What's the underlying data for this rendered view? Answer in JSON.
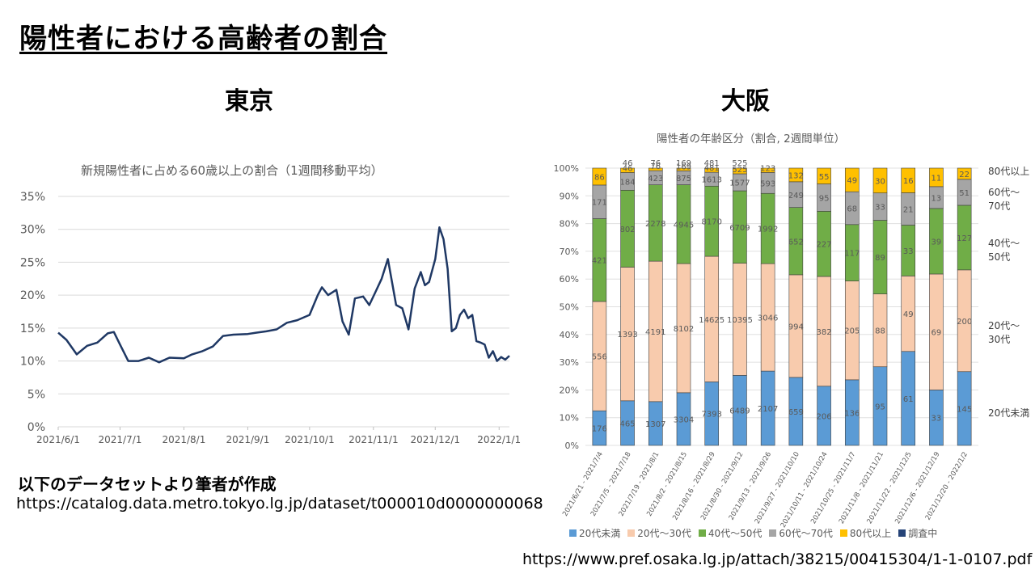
{
  "page": {
    "title": "陽性者における高齢者の割合",
    "tokyo_label": "東京",
    "osaka_label": "大阪",
    "source_note": "以下のデータセットより筆者が作成",
    "tokyo_url": "https://catalog.data.metro.tokyo.lg.jp/dataset/t000010d0000000068",
    "osaka_url": "https://www.pref.osaka.lg.jp/attach/38215/00415304/1-1-0107.pdf"
  },
  "chart_data": [
    {
      "type": "line",
      "title": "新規陽性者に占める60歳以上の割合（1週間移動平均）",
      "xlabel": "",
      "ylabel": "",
      "ylim": [
        0,
        35
      ],
      "yticks": [
        "0%",
        "5%",
        "10%",
        "15%",
        "20%",
        "25%",
        "30%",
        "35%"
      ],
      "x_tick_labels": [
        "2021/6/1",
        "2021/7/1",
        "2021/8/1",
        "2021/9/1",
        "2021/10/1",
        "2021/11/1",
        "2021/12/1",
        "2022/1/1"
      ],
      "x": [
        "2021-06-01",
        "2021-06-05",
        "2021-06-10",
        "2021-06-15",
        "2021-06-20",
        "2021-06-25",
        "2021-06-28",
        "2021-07-01",
        "2021-07-05",
        "2021-07-10",
        "2021-07-15",
        "2021-07-20",
        "2021-07-25",
        "2021-08-01",
        "2021-08-05",
        "2021-08-10",
        "2021-08-15",
        "2021-08-20",
        "2021-08-25",
        "2021-09-01",
        "2021-09-05",
        "2021-09-10",
        "2021-09-15",
        "2021-09-20",
        "2021-09-25",
        "2021-10-01",
        "2021-10-05",
        "2021-10-07",
        "2021-10-10",
        "2021-10-14",
        "2021-10-17",
        "2021-10-20",
        "2021-10-23",
        "2021-10-27",
        "2021-10-30",
        "2021-11-02",
        "2021-11-05",
        "2021-11-08",
        "2021-11-10",
        "2021-11-12",
        "2021-11-15",
        "2021-11-18",
        "2021-11-21",
        "2021-11-24",
        "2021-11-26",
        "2021-11-28",
        "2021-12-01",
        "2021-12-03",
        "2021-12-05",
        "2021-12-07",
        "2021-12-09",
        "2021-12-11",
        "2021-12-13",
        "2021-12-15",
        "2021-12-17",
        "2021-12-19",
        "2021-12-21",
        "2021-12-23",
        "2021-12-25",
        "2021-12-27",
        "2021-12-29",
        "2021-12-31",
        "2022-01-02",
        "2022-01-04",
        "2022-01-06"
      ],
      "series": [
        {
          "values": [
            14.3,
            13.2,
            11.0,
            12.3,
            12.8,
            14.2,
            14.4,
            12.5,
            10.0,
            10.0,
            10.5,
            9.8,
            10.5,
            10.4,
            11.0,
            11.5,
            12.2,
            13.8,
            14.0,
            14.1,
            14.3,
            14.5,
            14.8,
            15.8,
            16.2,
            17.0,
            20.0,
            21.2,
            20.0,
            20.8,
            16.0,
            14.0,
            19.5,
            19.8,
            18.5,
            20.5,
            22.5,
            25.5,
            22.0,
            18.5,
            18.0,
            14.8,
            21.0,
            23.5,
            21.5,
            22.0,
            25.5,
            30.3,
            28.5,
            24.0,
            14.5,
            15.0,
            17.0,
            17.8,
            16.5,
            17.0,
            13.0,
            12.8,
            12.5,
            10.5,
            11.5,
            10.0,
            10.6,
            10.2,
            10.8
          ],
          "color": "#1f3864"
        }
      ],
      "grid": true
    },
    {
      "type": "bar",
      "stacked": true,
      "percent": true,
      "title": "陽性者の年齢区分（割合, 2週間単位）",
      "categories": [
        "2021/6/21 - 2021/7/4",
        "2021/7/5 - 2021/7/18",
        "2021/7/19 - 2021/8/1",
        "2021/8/2 - 2021/8/15",
        "2021/8/16 - 2021/8/29",
        "2021/8/30 - 2021/9/12",
        "2021/9/13 - 2021/9/26",
        "2021/9/27 - 2021/10/10",
        "2021/10/11 - 2021/10/24",
        "2021/10/25 - 2021/11/7",
        "2021/11/8 - 2021/11/21",
        "2021/11/22 - 2021/12/5",
        "2021/12/6 - 2021/12/19",
        "2021/12/20 - 2022/1/2"
      ],
      "yticks": [
        "0%",
        "10%",
        "20%",
        "30%",
        "40%",
        "50%",
        "60%",
        "70%",
        "80%",
        "90%",
        "100%"
      ],
      "series": [
        {
          "name": "20代未満",
          "color": "#5b9bd5",
          "values": [
            176,
            465,
            1307,
            3304,
            7393,
            6489,
            2107,
            659,
            206,
            136,
            95,
            61,
            33,
            145
          ]
        },
        {
          "name": "20代〜30代",
          "color": "#f8cbad",
          "values": [
            556,
            1393,
            4191,
            8102,
            14625,
            10395,
            3046,
            994,
            382,
            205,
            88,
            49,
            69,
            200
          ]
        },
        {
          "name": "40代〜50代",
          "color": "#70ad47",
          "values": [
            421,
            802,
            2278,
            4945,
            8170,
            6709,
            1992,
            652,
            227,
            117,
            89,
            33,
            39,
            127
          ]
        },
        {
          "name": "60代〜70代",
          "color": "#a5a5a5",
          "values": [
            171,
            184,
            423,
            875,
            1613,
            1577,
            593,
            249,
            95,
            68,
            33,
            21,
            13,
            51
          ]
        },
        {
          "name": "80代以上",
          "color": "#ffc000",
          "values": [
            86,
            46,
            76,
            169,
            481,
            525,
            123,
            132,
            55,
            49,
            30,
            16,
            11,
            22
          ]
        },
        {
          "name": "調査中",
          "color": "#264478",
          "values": [
            0,
            0,
            0,
            0,
            0,
            0,
            0,
            0,
            0,
            0,
            0,
            0,
            0,
            0
          ]
        }
      ],
      "top_labels": [
        "",
        "46",
        "76",
        "169",
        "481",
        "525",
        "",
        "",
        "",
        "",
        "",
        "",
        "",
        ""
      ],
      "right_labels": [
        "80代以上",
        "60代〜\n70代",
        "40代〜\n50代",
        "20代〜\n30代",
        "20代未満"
      ]
    }
  ]
}
